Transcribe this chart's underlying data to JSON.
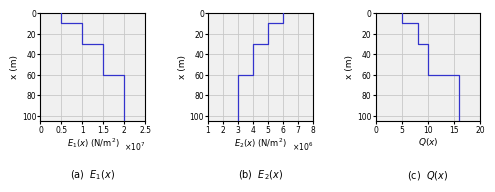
{
  "layers_depth": [
    0,
    10,
    30,
    60,
    105
  ],
  "E1_values": [
    5000000.0,
    10000000.0,
    15000000.0,
    20000000.0
  ],
  "E2_values": [
    6000000.0,
    5000000.0,
    4000000.0,
    3000000.0
  ],
  "Q_values": [
    5,
    8,
    10,
    16
  ],
  "xlim_E1": [
    0,
    25000000.0
  ],
  "xlim_E2": [
    1000000.0,
    8000000.0
  ],
  "xlim_Q": [
    0,
    20
  ],
  "ylim": [
    105,
    0
  ],
  "ylabel": "x (m)",
  "line_color": "#3333CC",
  "grid_color": "#C8C8C8",
  "bg_color": "#F0F0F0",
  "yticks": [
    0,
    20,
    40,
    60,
    80,
    100
  ],
  "xticks_E1": [
    0,
    5000000.0,
    10000000.0,
    15000000.0,
    20000000.0,
    25000000.0
  ],
  "xtick_labels_E1": [
    "0",
    "0.5",
    "1",
    "1.5",
    "2",
    "2.5"
  ],
  "xticks_E2": [
    1000000.0,
    2000000.0,
    3000000.0,
    4000000.0,
    5000000.0,
    6000000.0,
    7000000.0,
    8000000.0
  ],
  "xtick_labels_E2": [
    "1",
    "2",
    "3",
    "4",
    "5",
    "6",
    "7",
    "8"
  ],
  "xticks_Q": [
    0,
    5,
    10,
    15,
    20
  ],
  "xtick_labels_Q": [
    "0",
    "5",
    "10",
    "15",
    "20"
  ],
  "xlabel_E1": "$E_1(x)$ (N/m$^2$)",
  "xlabel_E2": "$E_2(x)$ (N/m$^2$)",
  "xlabel_Q": "$Q(x)$",
  "exp_E1": "$\\times 10^7$",
  "exp_E2": "$\\times 10^6$",
  "caption_a": "(a)  $E_1(x)$",
  "caption_b": "(b)  $E_2(x)$",
  "caption_c": "(c)  $Q(x)$"
}
